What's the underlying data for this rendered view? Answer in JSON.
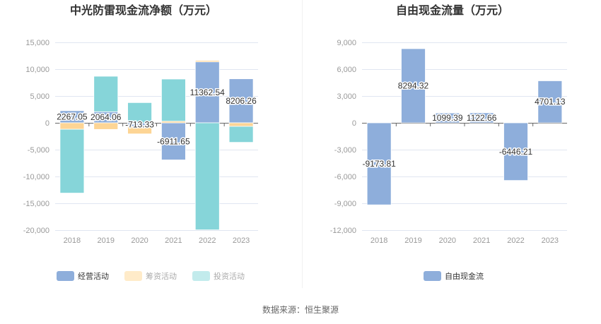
{
  "source": "数据来源：恒生聚源",
  "chart_data": [
    {
      "type": "bar",
      "stacked": true,
      "title": "中光防雷现金流净额（万元）",
      "categories": [
        "2018",
        "2019",
        "2020",
        "2021",
        "2022",
        "2023"
      ],
      "ylim": [
        -20000,
        15000
      ],
      "yticks": [
        15000,
        10000,
        5000,
        0,
        -5000,
        -10000,
        -15000,
        -20000
      ],
      "ytick_labels": [
        "15,000",
        "10,000",
        "5,000",
        "0",
        "-5,000",
        "-10,000",
        "-15,000",
        "-20,000"
      ],
      "grid": true,
      "legend_position": "bottom",
      "series": [
        {
          "name": "经营活动",
          "color": "#8eaedb",
          "values": [
            2267.05,
            2064.06,
            -713.33,
            -6911.65,
            11362.54,
            8206.26
          ],
          "labels": [
            "2267.05",
            "2064.06",
            "-713.33",
            "-6911.65",
            "11362.54",
            "8206.26"
          ],
          "legend_active": true
        },
        {
          "name": "筹资活动",
          "color": "#fdd595",
          "legend_color": "#ffebc9",
          "values": [
            -1200,
            -1230,
            -1350,
            300,
            260,
            -660
          ],
          "legend_active": false
        },
        {
          "name": "投资活动",
          "color": "#86d5d9",
          "legend_color": "#c2ebec",
          "values": [
            -11900,
            6620,
            3770,
            7860,
            -19950,
            -2980
          ],
          "legend_active": false
        }
      ]
    },
    {
      "type": "bar",
      "title": "自由现金流量（万元）",
      "categories": [
        "2018",
        "2019",
        "2020",
        "2021",
        "2022",
        "2023"
      ],
      "ylim": [
        -12000,
        9000
      ],
      "yticks": [
        9000,
        6000,
        3000,
        0,
        -3000,
        -6000,
        -9000,
        -12000
      ],
      "ytick_labels": [
        "9,000",
        "6,000",
        "3,000",
        "0",
        "-3,000",
        "-6,000",
        "-9,000",
        "-12,000"
      ],
      "grid": true,
      "legend_position": "bottom",
      "series": [
        {
          "name": "自由现金流",
          "color": "#8eaedb",
          "values": [
            -9173.81,
            8294.32,
            1099.39,
            1122.66,
            -6446.21,
            4701.13
          ],
          "labels": [
            "-9173.81",
            "8294.32",
            "1099.39",
            "1122.66",
            "-6446.21",
            "4701.13"
          ],
          "legend_active": true
        }
      ]
    }
  ]
}
